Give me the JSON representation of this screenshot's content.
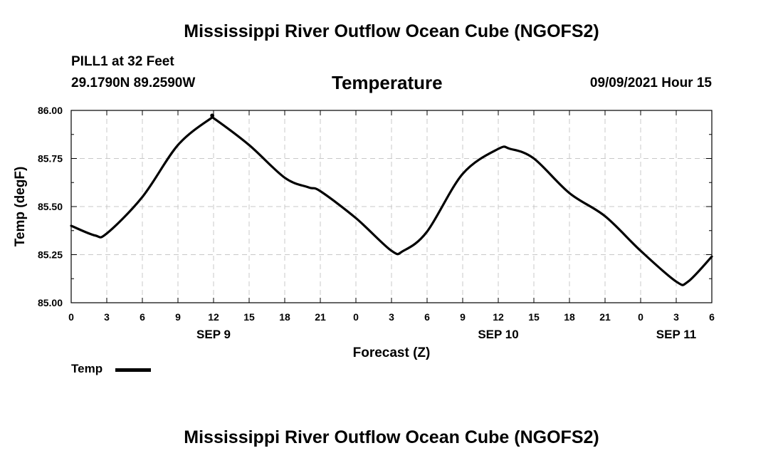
{
  "page": {
    "title_top": "Mississippi River Outflow Ocean Cube (NGOFS2)",
    "title_bottom": "Mississippi River Outflow Ocean Cube (NGOFS2)",
    "station": "PILL1 at 32 Feet",
    "coords": "29.1790N  89.2590W",
    "variable": "Temperature",
    "datetime": "09/09/2021 Hour 15"
  },
  "chart_data": {
    "type": "line",
    "title": "Temperature",
    "xlabel": "Forecast (Z)",
    "ylabel": "Temp (degF)",
    "ylim": [
      85.0,
      86.0
    ],
    "yticks": [
      "85.00",
      "85.25",
      "85.50",
      "85.75",
      "86.00"
    ],
    "x_unit": "hours since 2021-09-09 00Z",
    "xlim": [
      0,
      54
    ],
    "xticks": [
      {
        "x": 0,
        "label": "0"
      },
      {
        "x": 3,
        "label": "3"
      },
      {
        "x": 6,
        "label": "6"
      },
      {
        "x": 9,
        "label": "9"
      },
      {
        "x": 12,
        "label": "12"
      },
      {
        "x": 15,
        "label": "15"
      },
      {
        "x": 18,
        "label": "18"
      },
      {
        "x": 21,
        "label": "21"
      },
      {
        "x": 24,
        "label": "0"
      },
      {
        "x": 27,
        "label": "3"
      },
      {
        "x": 30,
        "label": "6"
      },
      {
        "x": 33,
        "label": "9"
      },
      {
        "x": 36,
        "label": "12"
      },
      {
        "x": 39,
        "label": "15"
      },
      {
        "x": 42,
        "label": "18"
      },
      {
        "x": 45,
        "label": "21"
      },
      {
        "x": 48,
        "label": "0"
      },
      {
        "x": 51,
        "label": "3"
      },
      {
        "x": 54,
        "label": "6"
      }
    ],
    "day_labels": [
      {
        "x": 12,
        "label": "SEP 9"
      },
      {
        "x": 36,
        "label": "SEP 10"
      },
      {
        "x": 51,
        "label": "SEP 11"
      }
    ],
    "grid": true,
    "legend": {
      "position": "bottom-left",
      "entries": [
        "Temp"
      ]
    },
    "series": [
      {
        "name": "Temp",
        "x": [
          0,
          2,
          3,
          6,
          9,
          11.8,
          12,
          15,
          18,
          20,
          21,
          24,
          27,
          28,
          30,
          33,
          36,
          37,
          39,
          42,
          45,
          48,
          51,
          52,
          54
        ],
        "values": [
          85.4,
          85.35,
          85.36,
          85.55,
          85.82,
          85.96,
          85.96,
          85.82,
          85.65,
          85.6,
          85.58,
          85.44,
          85.27,
          85.27,
          85.37,
          85.67,
          85.8,
          85.8,
          85.75,
          85.57,
          85.45,
          85.27,
          85.11,
          85.11,
          85.24
        ]
      }
    ]
  }
}
